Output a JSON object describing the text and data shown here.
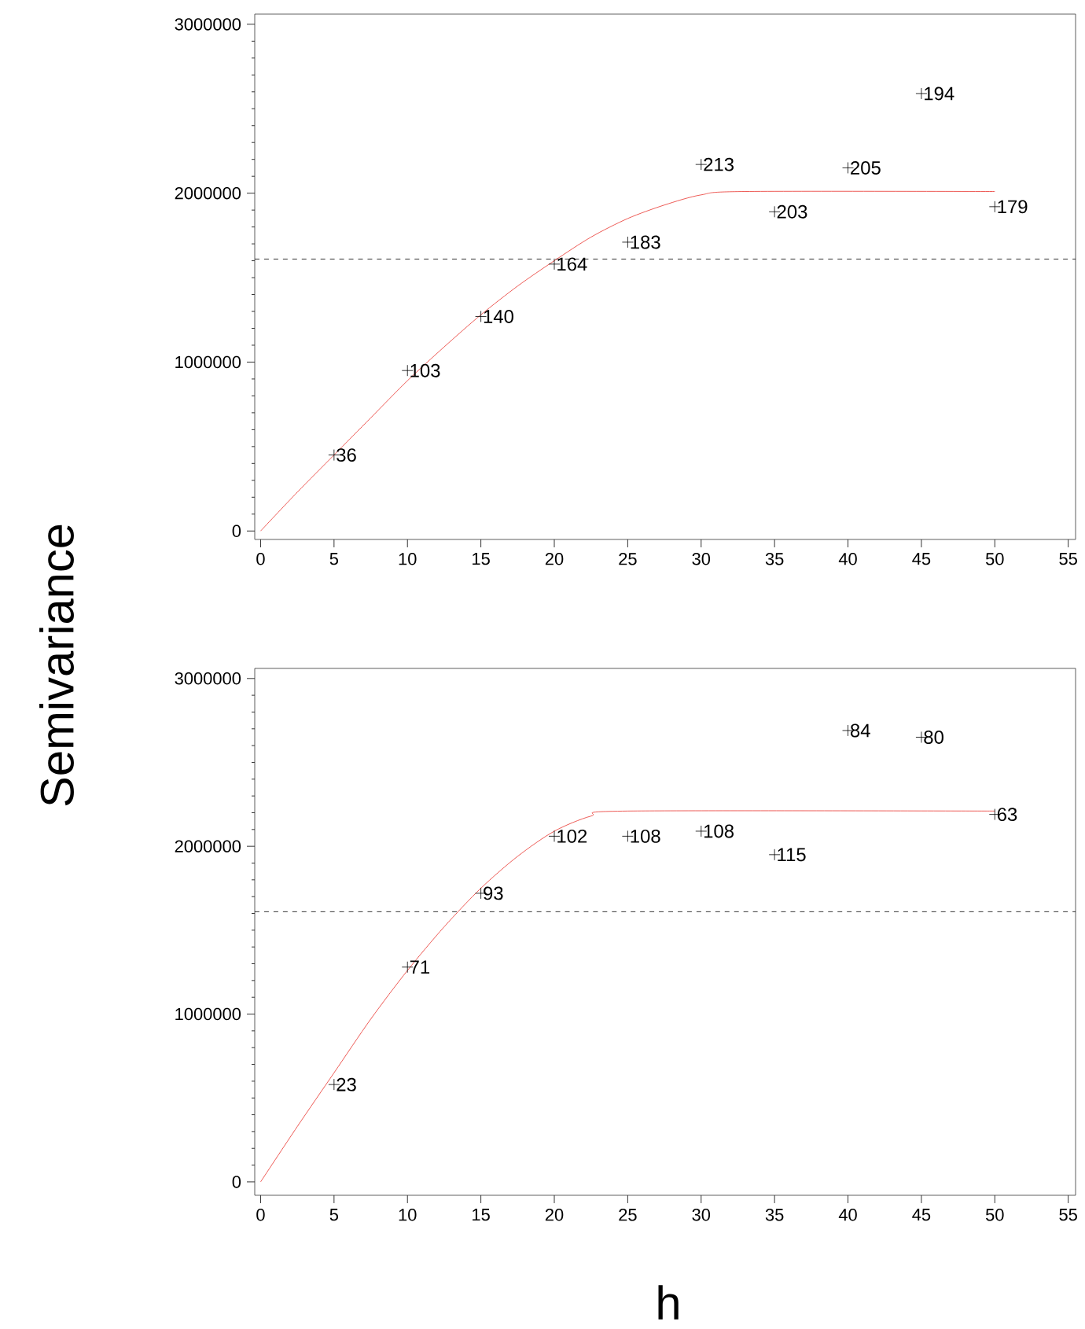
{
  "chart_data": [
    {
      "type": "scatter",
      "ylabel": "Semivariance",
      "x": [
        5,
        10,
        15,
        20,
        25,
        30,
        35,
        40,
        45,
        50
      ],
      "xlim": [
        -0.4,
        55.5
      ],
      "ylim": [
        -50000,
        3060000
      ],
      "xticks": [
        0,
        5,
        10,
        15,
        20,
        25,
        30,
        35,
        40,
        45,
        50,
        55
      ],
      "yticks": [
        0,
        1000000,
        2000000,
        3000000
      ],
      "ref_lines": [
        {
          "axis": "y",
          "value": 1610000,
          "line_style": "dashed",
          "color": "#000000"
        }
      ],
      "annotations": [
        {
          "text": "36",
          "x": 5,
          "y": 450000
        },
        {
          "text": "103",
          "x": 10,
          "y": 950000
        },
        {
          "text": "140",
          "x": 15,
          "y": 1270000
        },
        {
          "text": "164",
          "x": 20,
          "y": 1580000
        },
        {
          "text": "183",
          "x": 25,
          "y": 1710000
        },
        {
          "text": "213",
          "x": 30,
          "y": 2170000
        },
        {
          "text": "203",
          "x": 35,
          "y": 1890000
        },
        {
          "text": "205",
          "x": 40,
          "y": 2150000
        },
        {
          "text": "194",
          "x": 45,
          "y": 2590000
        },
        {
          "text": "179",
          "x": 50,
          "y": 1920000
        }
      ],
      "series": [
        {
          "color": "#000000",
          "marker": "cross",
          "values": [
            450000,
            950000,
            1270000,
            1580000,
            1710000,
            2170000,
            1890000,
            2150000,
            2590000,
            1920000
          ]
        },
        {
          "type": "line",
          "marker": "none",
          "color": "#e8312b",
          "x": [
            0,
            2.5,
            5,
            7.5,
            10,
            12.5,
            15,
            17.5,
            20,
            22.5,
            25,
            27.5,
            30,
            33,
            50
          ],
          "values": [
            0,
            230000,
            450000,
            670000,
            890000,
            1090000,
            1280000,
            1450000,
            1600000,
            1740000,
            1850000,
            1930000,
            1990000,
            2010000,
            2010000
          ]
        }
      ]
    },
    {
      "type": "scatter",
      "xlabel": "h",
      "x": [
        5,
        10,
        15,
        20,
        25,
        30,
        35,
        40,
        45,
        50
      ],
      "xlim": [
        -0.4,
        55.5
      ],
      "ylim": [
        -80000,
        3060000
      ],
      "xticks": [
        0,
        5,
        10,
        15,
        20,
        25,
        30,
        35,
        40,
        45,
        50,
        55
      ],
      "yticks": [
        0,
        1000000,
        2000000,
        3000000
      ],
      "ref_lines": [
        {
          "axis": "y",
          "value": 1610000,
          "line_style": "dashed",
          "color": "#000000"
        }
      ],
      "annotations": [
        {
          "text": "23",
          "x": 5,
          "y": 580000
        },
        {
          "text": "71",
          "x": 10,
          "y": 1280000
        },
        {
          "text": "93",
          "x": 15,
          "y": 1720000
        },
        {
          "text": "102",
          "x": 20,
          "y": 2060000
        },
        {
          "text": "108",
          "x": 25,
          "y": 2060000
        },
        {
          "text": "108",
          "x": 30,
          "y": 2090000
        },
        {
          "text": "115",
          "x": 35,
          "y": 1950000
        },
        {
          "text": "84",
          "x": 40,
          "y": 2690000
        },
        {
          "text": "80",
          "x": 45,
          "y": 2650000
        },
        {
          "text": "63",
          "x": 50,
          "y": 2190000
        }
      ],
      "series": [
        {
          "color": "#000000",
          "marker": "cross",
          "values": [
            580000,
            1280000,
            1720000,
            2060000,
            2060000,
            2090000,
            1950000,
            2690000,
            2650000,
            2190000
          ]
        },
        {
          "type": "line",
          "marker": "none",
          "color": "#e8312b",
          "x": [
            0,
            2.5,
            5,
            7.5,
            10,
            12.5,
            15,
            17.5,
            20,
            22.5,
            25,
            50
          ],
          "values": [
            0,
            330000,
            650000,
            970000,
            1260000,
            1520000,
            1750000,
            1940000,
            2090000,
            2180000,
            2210000,
            2210000
          ]
        }
      ]
    }
  ]
}
